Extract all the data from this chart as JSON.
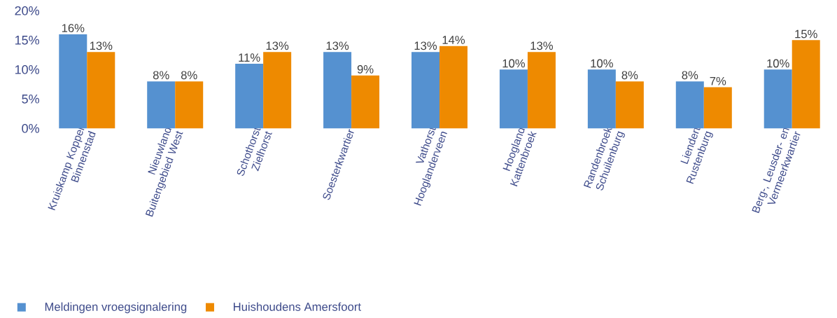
{
  "chart_data": {
    "type": "bar",
    "categories": [
      "Kruiskamp Koppel Binnenstad",
      "Nieuwland Buitengebied West",
      "Schothorst Zielhorst",
      "Soesterkwartier",
      "Vathorst Hooglanderveen",
      "Hoogland Kattenbroek",
      "Randenbroek Schuilenburg",
      "Liendert Rustenburg",
      "Berg-, Leusder- en Vermeerkwartier"
    ],
    "series": [
      {
        "name": "Meldingen vroegsignalering",
        "color": "#5591d0",
        "values": [
          16,
          8,
          11,
          13,
          13,
          10,
          10,
          8,
          10
        ],
        "value_labels": [
          "16%",
          "8%",
          "11%",
          "13%",
          "13%",
          "10%",
          "10%",
          "8%",
          "10%"
        ]
      },
      {
        "name": "Huishoudens Amersfoort",
        "color": "#ee8a00",
        "values": [
          13,
          8,
          13,
          9,
          14,
          13,
          8,
          7,
          15
        ],
        "value_labels": [
          "13%",
          "8%",
          "13%",
          "9%",
          "14%",
          "13%",
          "8%",
          "7%",
          "15%"
        ]
      }
    ],
    "ylim": [
      0,
      20
    ],
    "yticks": [
      {
        "value": 0,
        "label": "0%"
      },
      {
        "value": 5,
        "label": "5%"
      },
      {
        "value": 10,
        "label": "10%"
      },
      {
        "value": 15,
        "label": "15%"
      },
      {
        "value": 20,
        "label": "20%"
      }
    ],
    "legend": "bottom left"
  }
}
